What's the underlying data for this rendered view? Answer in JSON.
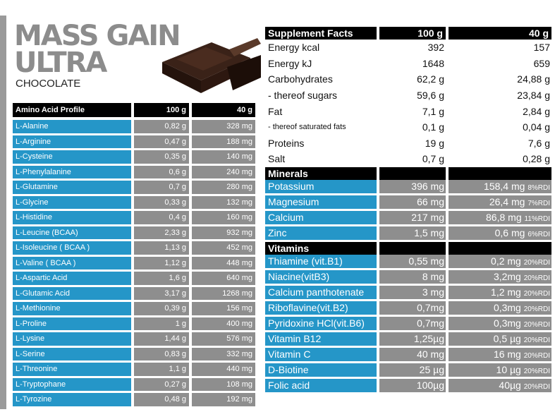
{
  "header": {
    "title_line1": "MASS GAIN",
    "title_line2": "ULTRA",
    "subtitle": "CHOCOLATE"
  },
  "amino": {
    "headers": [
      "Amino Acid Profile",
      "100 g",
      "40 g"
    ],
    "rows": [
      {
        "name": "L-Alanine",
        "a": "0,82 g",
        "b": "328 mg"
      },
      {
        "name": "L-Arginine",
        "a": "0,47 g",
        "b": "188 mg"
      },
      {
        "name": "L-Cysteine",
        "a": "0,35 g",
        "b": "140 mg"
      },
      {
        "name": "L-Phenylalanine",
        "a": "0,6 g",
        "b": "240 mg"
      },
      {
        "name": "L-Glutamine",
        "a": "0,7 g",
        "b": "280 mg"
      },
      {
        "name": "L-Glycine",
        "a": "0,33 g",
        "b": "132 mg"
      },
      {
        "name": "L-Histidine",
        "a": "0,4 g",
        "b": "160 mg"
      },
      {
        "name": "L-Leucine  (BCAA)",
        "a": "2,33 g",
        "b": "932 mg"
      },
      {
        "name": "L-Isoleucine (  BCAA )",
        "a": "1,13 g",
        "b": "452 mg"
      },
      {
        "name": "L-Valine ( BCAA )",
        "a": "1,12 g",
        "b": "448 mg"
      },
      {
        "name": "L-Aspartic Acid",
        "a": "1,6 g",
        "b": "640 mg"
      },
      {
        "name": "L-Glutamic Acid",
        "a": "3,17 g",
        "b": "1268 mg"
      },
      {
        "name": "L-Methionine",
        "a": "0,39 g",
        "b": "156 mg"
      },
      {
        "name": "L-Proline",
        "a": "1 g",
        "b": "400 mg"
      },
      {
        "name": "L-Lysine",
        "a": "1,44  g",
        "b": "576  mg"
      },
      {
        "name": "L-Serine",
        "a": "0,83  g",
        "b": "332  mg"
      },
      {
        "name": "L-Threonine",
        "a": "1,1 g",
        "b": "440  mg"
      },
      {
        "name": "L-Tryptophane",
        "a": "0,27  g",
        "b": "108  mg"
      },
      {
        "name": "L-Tyrozine",
        "a": "0,48  g",
        "b": "192  mg"
      }
    ]
  },
  "supplement": {
    "headers": [
      "Supplement Facts",
      "100 g",
      "40 g"
    ],
    "basic": [
      {
        "name": "Energy  kcal",
        "a": "392",
        "b": "157"
      },
      {
        "name": "Energy  kJ",
        "a": "1648",
        "b": "659"
      },
      {
        "name": "Carbohydrates",
        "a": "62,2 g",
        "b": "24,88 g"
      },
      {
        "name": "- thereof sugars",
        "a": "59,6 g",
        "b": "23,84 g"
      },
      {
        "name": "Fat",
        "a": "7,1 g",
        "b": "2,84 g"
      },
      {
        "name": "- thereof saturated fats",
        "a": "0,1 g",
        "b": "0,04 g"
      },
      {
        "name": "Proteins",
        "a": "19 g",
        "b": "7,6 g"
      },
      {
        "name": "Salt",
        "a": "0,7 g",
        "b": "0,28 g"
      }
    ],
    "minerals_label": "Minerals",
    "minerals": [
      {
        "name": "Potassium",
        "a": "396 mg",
        "b": "158,4 mg",
        "rdi": "8%RDI"
      },
      {
        "name": "Magnesium",
        "a": "66 mg",
        "b": "26,4 mg",
        "rdi": "7%RDI"
      },
      {
        "name": "Calcium",
        "a": "217 mg",
        "b": "86,8 mg",
        "rdi": "11%RDI"
      },
      {
        "name": "Zinc",
        "a": "1,5 mg",
        "b": "0,6 mg",
        "rdi": "6%RDI"
      }
    ],
    "vitamins_label": "Vitamins",
    "vitamins": [
      {
        "name": "Thiamine (vit.B1)",
        "a": "0,55 mg",
        "b": "0,2 mg",
        "rdi": "20%RDI"
      },
      {
        "name": "Niacine(vitB3)",
        "a": "8 mg",
        "b": "3,2mg",
        "rdi": "20%RDI"
      },
      {
        "name": "Calcium panthotenate",
        "a": "3 mg",
        "b": "1,2 mg",
        "rdi": "20%RDI"
      },
      {
        "name": "Riboflavine(vit.B2)",
        "a": "0,7mg",
        "b": "0,3mg",
        "rdi": "20%RDI"
      },
      {
        "name": "Pyridoxine HCl(vit.B6)",
        "a": "0,7mg",
        "b": "0,3mg",
        "rdi": "20%RDI"
      },
      {
        "name": "Vitamin B12",
        "a": "1,25µg",
        "b": "0,5 µg",
        "rdi": "20%RDI"
      },
      {
        "name": "Vitamin C",
        "a": "40 mg",
        "b": "16 mg",
        "rdi": "20%RDI"
      },
      {
        "name": "D-Biotine",
        "a": "25 µg",
        "b": "10 µg",
        "rdi": "20%RDI"
      },
      {
        "name": "Folic acid",
        "a": "100µg",
        "b": "40µg",
        "rdi": "20%RDI"
      }
    ]
  }
}
